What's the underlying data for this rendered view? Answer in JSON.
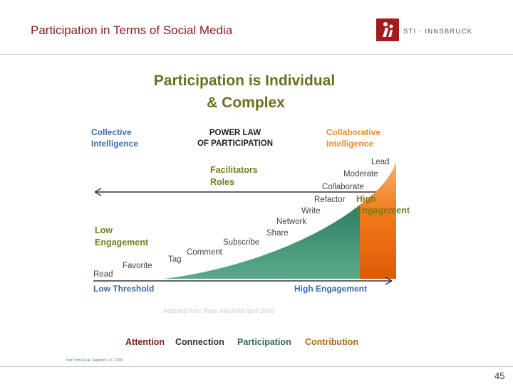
{
  "slide": {
    "title": "Participation in Terms of Social Media",
    "page_number": "45",
    "footnote": "Ioan Toma & al, SageIdd, LLC 2009"
  },
  "logo": {
    "text": "STI · INNSBRUCK",
    "color": "#a31c1c"
  },
  "diagram": {
    "heading_line1": "Participation is Individual",
    "heading_line2": "& Complex",
    "collective_line1": "Collective",
    "collective_line2": "Intelligence",
    "powerlaw_line1": "POWER LAW",
    "powerlaw_line2": "OF PARTICIPATION",
    "collaborative_line1": "Collaborative",
    "collaborative_line2": "Intelligence",
    "facilitators_line1": "Facilitators",
    "facilitators_line2": "Roles",
    "low_engagement_line1": "Low",
    "low_engagement_line2": "Engagement",
    "high_engagement_line1": "High",
    "high_engagement_line2": "Engagement",
    "activities": [
      "Read",
      "Favorite",
      "Tag",
      "Comment",
      "Subscribe",
      "Share",
      "Network",
      "Write",
      "Refactor",
      "Collaborate",
      "Moderate",
      "Lead"
    ],
    "low_threshold": "Low Threshold",
    "high_engagement_axis": "High Engagement",
    "attribution": "Adapted from Ross Mayfield April 2006",
    "stages": [
      "Attention",
      "Connection",
      "Participation",
      "Contribution"
    ],
    "colors": {
      "green": "#3a8a6e",
      "orange": "#f07a1a",
      "blue_label": "#3b6aa8",
      "orange_label": "#ee8a2a",
      "olive": "#7a7a1a"
    }
  }
}
